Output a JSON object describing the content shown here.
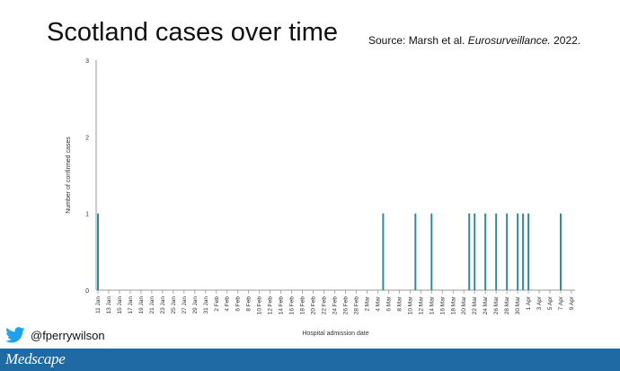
{
  "slide": {
    "title": "Scotland cases over time",
    "source_prefix": "Source: Marsh et al. ",
    "source_journal": "Eurosurveillance.",
    "source_year": " 2022."
  },
  "footer": {
    "handle": "@fperrywilson",
    "brand": "Medscape",
    "twitter_color": "#1da1f2",
    "bar_color": "#1f6aa5"
  },
  "chart_data": {
    "type": "bar",
    "xlabel": "Hospital admission date",
    "ylabel": "Number of confirmed cases",
    "ylim": [
      0,
      3
    ],
    "yticks": [
      0,
      1,
      2,
      3
    ],
    "bar_color": "#2e8b9e",
    "x_tick_labels": [
      "11 Jan",
      "13 Jan",
      "15 Jan",
      "17 Jan",
      "19 Jan",
      "21 Jan",
      "23 Jan",
      "25 Jan",
      "27 Jan",
      "29 Jan",
      "31 Jan",
      "2 Feb",
      "4 Feb",
      "6 Feb",
      "8 Feb",
      "10 Feb",
      "12 Feb",
      "14 Feb",
      "16 Feb",
      "18 Feb",
      "20 Feb",
      "22 Feb",
      "24 Feb",
      "26 Feb",
      "28 Feb",
      "2 Mar",
      "4 Mar",
      "6 Mar",
      "8 Mar",
      "10 Mar",
      "12 Mar",
      "14 Mar",
      "16 Mar",
      "18 Mar",
      "20 Mar",
      "22 Mar",
      "24 Mar",
      "26 Mar",
      "28 Mar",
      "30 Mar",
      "1 Apr",
      "3 Apr",
      "5 Apr",
      "7 Apr",
      "9 Apr"
    ],
    "categories": [
      "11 Jan",
      "5 Mar",
      "11 Mar",
      "14 Mar",
      "21 Mar",
      "22 Mar",
      "24 Mar",
      "26 Mar",
      "28 Mar",
      "30 Mar",
      "31 Mar",
      "1 Apr",
      "7 Apr"
    ],
    "values": [
      1,
      1,
      1,
      1,
      1,
      1,
      1,
      1,
      1,
      1,
      1,
      1,
      1
    ]
  }
}
